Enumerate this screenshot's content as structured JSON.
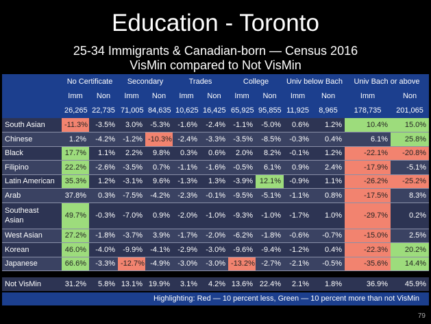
{
  "title": "Education - Toronto",
  "subtitle_lines": [
    "25-34 Immigrants & Canadian-born — Census 2016",
    "VisMin compared to Not VisMin"
  ],
  "table": {
    "groups": [
      "No Certificate",
      "Secondary",
      "Trades",
      "College",
      "Univ below Bach",
      "Univ Bach or above"
    ],
    "subheaders": [
      "Imm",
      "Non",
      "Imm",
      "Non",
      "Imm",
      "Non",
      "Imm",
      "Non",
      "Imm",
      "Non",
      "Imm",
      "Non"
    ],
    "counts": [
      "26,265",
      "22,735",
      "71,005",
      "84,635",
      "10,625",
      "16,425",
      "65,925",
      "95,855",
      "11,925",
      "8,965",
      "178,735",
      "201,065"
    ],
    "rows": [
      {
        "label": "South Asian",
        "cells": [
          "-11.3%",
          "-3.5%",
          "3.0%",
          "-5.3%",
          "-1.6%",
          "-2.4%",
          "-1.1%",
          "-5.0%",
          "0.6%",
          "1.2%",
          "10.4%",
          "15.0%"
        ],
        "highlights": [
          {
            "col": 0,
            "color": "#f2836f"
          },
          {
            "col": 10,
            "color": "#9ddc7c"
          },
          {
            "col": 11,
            "color": "#9ddc7c"
          }
        ]
      },
      {
        "label": "Chinese",
        "cells": [
          "1.2%",
          "-4.2%",
          "-1.2%",
          "-10.3%",
          "-2.4%",
          "-3.3%",
          "-3.5%",
          "-8.5%",
          "-0.3%",
          "0.4%",
          "6.1%",
          "25.8%"
        ],
        "highlights": [
          {
            "col": 3,
            "color": "#f2836f"
          },
          {
            "col": 11,
            "color": "#9ddc7c"
          }
        ]
      },
      {
        "label": "Black",
        "cells": [
          "17.7%",
          "1.1%",
          "2.2%",
          "9.8%",
          "0.3%",
          "0.6%",
          "2.0%",
          "8.2%",
          "-0.1%",
          "1.2%",
          "-22.1%",
          "-20.8%"
        ],
        "highlights": [
          {
            "col": 0,
            "color": "#9ddc7c"
          },
          {
            "col": 10,
            "color": "#f2836f"
          },
          {
            "col": 11,
            "color": "#f2836f"
          }
        ]
      },
      {
        "label": "Filipino",
        "cells": [
          "22.2%",
          "-2.6%",
          "-3.5%",
          "0.7%",
          "-1.1%",
          "-1.6%",
          "-0.5%",
          "6.1%",
          "0.9%",
          "2.4%",
          "-17.9%",
          "-5.1%"
        ],
        "highlights": [
          {
            "col": 0,
            "color": "#9ddc7c"
          },
          {
            "col": 10,
            "color": "#f2836f"
          }
        ]
      },
      {
        "label": "Latin American",
        "cells": [
          "35.3%",
          "1.2%",
          "-3.1%",
          "9.6%",
          "-1.3%",
          "1.3%",
          "-3.9%",
          "12.1%",
          "-0.9%",
          "1.1%",
          "-26.2%",
          "-25.2%"
        ],
        "highlights": [
          {
            "col": 0,
            "color": "#9ddc7c"
          },
          {
            "col": 7,
            "color": "#9ddc7c"
          },
          {
            "col": 10,
            "color": "#f2836f"
          },
          {
            "col": 11,
            "color": "#f2836f"
          }
        ]
      },
      {
        "label": "Arab",
        "cells": [
          "37.8%",
          "0.3%",
          "-7.5%",
          "-4.2%",
          "-2.3%",
          "-0.1%",
          "-9.5%",
          "-5.1%",
          "-1.1%",
          "0.8%",
          "-17.5%",
          "8.3%"
        ],
        "highlights": [
          {
            "col": 10,
            "color": "#f2836f"
          }
        ]
      },
      {
        "label": "Southeast Asian",
        "cells": [
          "49.7%",
          "-0.3%",
          "-7.0%",
          "0.9%",
          "-2.0%",
          "-1.0%",
          "-9.3%",
          "-1.0%",
          "-1.7%",
          "1.0%",
          "-29.7%",
          "0.2%"
        ],
        "highlights": [
          {
            "col": 0,
            "color": "#9ddc7c"
          },
          {
            "col": 10,
            "color": "#f2836f"
          }
        ]
      },
      {
        "label": "West Asian",
        "cells": [
          "27.2%",
          "-1.8%",
          "-3.7%",
          "3.9%",
          "-1.7%",
          "-2.0%",
          "-6.2%",
          "-1.8%",
          "-0.6%",
          "-0.7%",
          "-15.0%",
          "2.5%"
        ],
        "highlights": [
          {
            "col": 0,
            "color": "#9ddc7c"
          },
          {
            "col": 10,
            "color": "#f2836f"
          }
        ]
      },
      {
        "label": "Korean",
        "cells": [
          "46.0%",
          "-4.0%",
          "-9.9%",
          "-4.1%",
          "-2.9%",
          "-3.0%",
          "-9.6%",
          "-9.4%",
          "-1.2%",
          "0.4%",
          "-22.3%",
          "20.2%"
        ],
        "highlights": [
          {
            "col": 0,
            "color": "#9ddc7c"
          },
          {
            "col": 10,
            "color": "#f2836f"
          },
          {
            "col": 11,
            "color": "#9ddc7c"
          }
        ]
      },
      {
        "label": "Japanese",
        "cells": [
          "66.6%",
          "-3.3%",
          "-12.7%",
          "-4.9%",
          "-3.0%",
          "-3.0%",
          "-13.2%",
          "-2.7%",
          "-2.1%",
          "-0.5%",
          "-35.6%",
          "14.4%"
        ],
        "highlights": [
          {
            "col": 0,
            "color": "#9ddc7c"
          },
          {
            "col": 2,
            "color": "#f2836f"
          },
          {
            "col": 6,
            "color": "#f2836f"
          },
          {
            "col": 10,
            "color": "#f2836f"
          },
          {
            "col": 11,
            "color": "#9ddc7c"
          }
        ]
      }
    ],
    "baseline": {
      "label": "Not VisMin",
      "cells": [
        "31.2%",
        "5.8%",
        "13.1%",
        "19.9%",
        "3.1%",
        "4.2%",
        "13.6%",
        "22.4%",
        "2.1%",
        "1.8%",
        "36.9%",
        "45.9%"
      ]
    },
    "footnote": "Highlighting:  Red — 10 percent less, Green — 10 percent more than not VisMin"
  },
  "page_number": "79"
}
